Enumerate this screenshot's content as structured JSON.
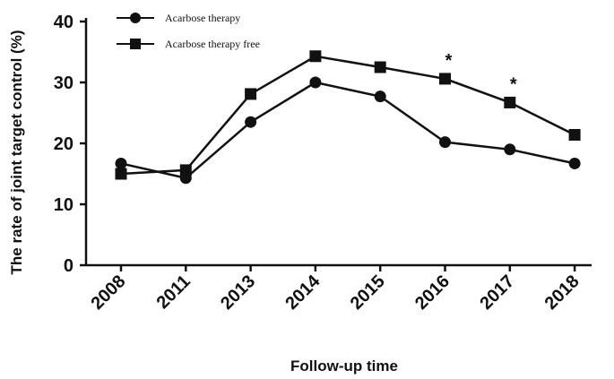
{
  "chart_data": {
    "type": "line",
    "title": "",
    "xlabel": "Follow-up time",
    "ylabel": "The rate of joint target control (%)",
    "categories": [
      "2008",
      "2011",
      "2013",
      "2014",
      "2015",
      "2016",
      "2017",
      "2018"
    ],
    "yticks": [
      "0",
      "10",
      "20",
      "30",
      "40"
    ],
    "ylim": [
      0,
      40
    ],
    "grid": false,
    "legend_position": "top-left",
    "series": [
      {
        "name": "Acarbose therapy",
        "marker": "circle",
        "color": "#111111",
        "values": [
          16.7,
          14.3,
          23.5,
          30.0,
          27.7,
          20.2,
          19.0,
          16.7
        ]
      },
      {
        "name": "Acarbose therapy free",
        "marker": "square",
        "color": "#111111",
        "values": [
          15.0,
          15.6,
          28.1,
          34.3,
          32.5,
          30.6,
          26.7,
          21.4
        ]
      }
    ],
    "annotations": [
      {
        "category": "2016",
        "text": "*"
      },
      {
        "category": "2017",
        "text": "*"
      }
    ]
  }
}
